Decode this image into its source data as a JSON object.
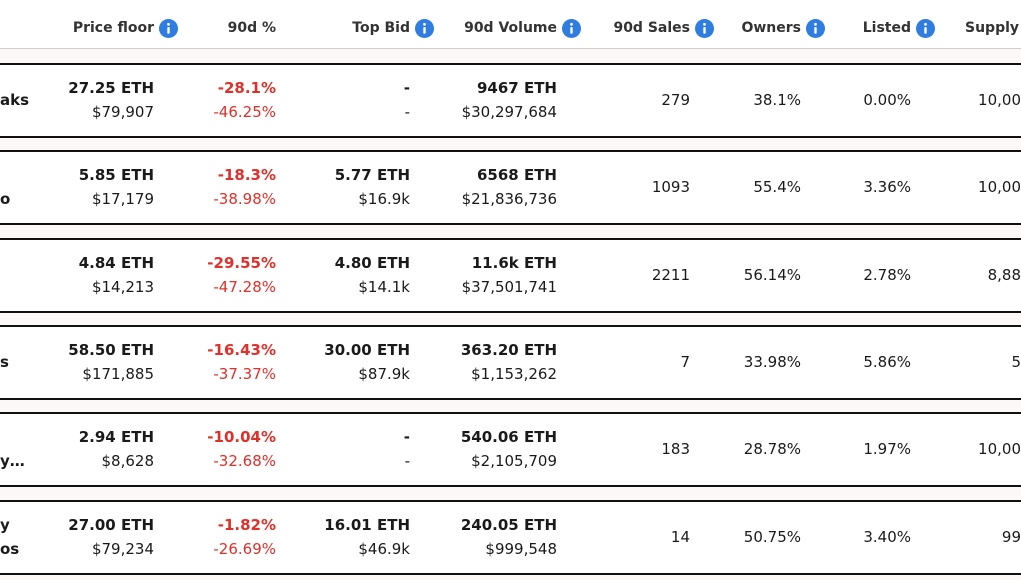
{
  "header": {
    "columns": [
      "Price floor",
      "90d %",
      "Top Bid",
      "90d Volume",
      "90d Sales",
      "Owners",
      "Listed",
      "Supply"
    ]
  },
  "rows": [
    {
      "name": [
        "aks"
      ],
      "price_floor": [
        "27.25 ETH",
        "$79,907"
      ],
      "change_90d": [
        "-28.1%",
        "-46.25%"
      ],
      "top_bid": [
        "-",
        "-"
      ],
      "volume_90d": [
        "9467 ETH",
        "$30,297,684"
      ],
      "sales_90d": "279",
      "owners": "38.1%",
      "listed": "0.00%",
      "supply": "10,00"
    },
    {
      "name": [
        "o"
      ],
      "price_floor": [
        "5.85 ETH",
        "$17,179"
      ],
      "change_90d": [
        "-18.3%",
        "-38.98%"
      ],
      "top_bid": [
        "5.77 ETH",
        "$16.9k"
      ],
      "volume_90d": [
        "6568 ETH",
        "$21,836,736"
      ],
      "sales_90d": "1093",
      "owners": "55.4%",
      "listed": "3.36%",
      "supply": "10,00"
    },
    {
      "name": [],
      "price_floor": [
        "4.84 ETH",
        "$14,213"
      ],
      "change_90d": [
        "-29.55%",
        "-47.28%"
      ],
      "top_bid": [
        "4.80 ETH",
        "$14.1k"
      ],
      "volume_90d": [
        "11.6k ETH",
        "$37,501,741"
      ],
      "sales_90d": "2211",
      "owners": "56.14%",
      "listed": "2.78%",
      "supply": "8,88"
    },
    {
      "name": [
        "s"
      ],
      "price_floor": [
        "58.50 ETH",
        "$171,885"
      ],
      "change_90d": [
        "-16.43%",
        "-37.37%"
      ],
      "top_bid": [
        "30.00 ETH",
        "$87.9k"
      ],
      "volume_90d": [
        "363.20 ETH",
        "$1,153,262"
      ],
      "sales_90d": "7",
      "owners": "33.98%",
      "listed": "5.86%",
      "supply": "5"
    },
    {
      "name": [
        "y…"
      ],
      "price_floor": [
        "2.94 ETH",
        "$8,628"
      ],
      "change_90d": [
        "-10.04%",
        "-32.68%"
      ],
      "top_bid": [
        "-",
        "-"
      ],
      "volume_90d": [
        "540.06 ETH",
        "$2,105,709"
      ],
      "sales_90d": "183",
      "owners": "28.78%",
      "listed": "1.97%",
      "supply": "10,00"
    },
    {
      "name": [
        "y",
        "os"
      ],
      "price_floor": [
        "27.00 ETH",
        "$79,234"
      ],
      "change_90d": [
        "-1.82%",
        "-26.69%"
      ],
      "top_bid": [
        "16.01 ETH",
        "$46.9k"
      ],
      "volume_90d": [
        "240.05 ETH",
        "$999,548"
      ],
      "sales_90d": "14",
      "owners": "50.75%",
      "listed": "3.40%",
      "supply": "99"
    }
  ]
}
